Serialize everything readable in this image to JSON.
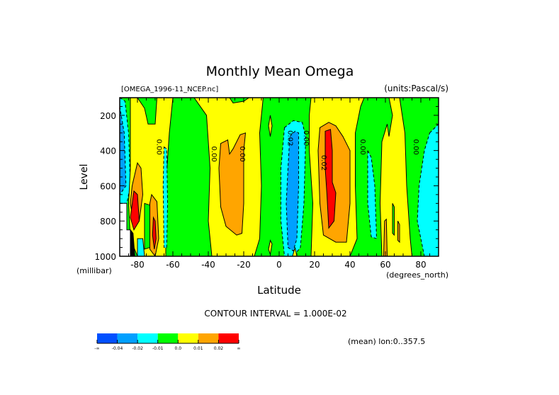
{
  "chart_data": {
    "type": "heatmap",
    "subtype": "filled-contour",
    "title": "Monthly Mean Omega",
    "file_label": "[OMEGA_1996-11_NCEP.nc]",
    "units_label": "(units:Pascal/s)",
    "xlabel": "Latitude",
    "xunits": "(degrees_north)",
    "ylabel": "Level",
    "yunits": "(millibar)",
    "xlim": [
      -90,
      90
    ],
    "ylim": [
      1000,
      100
    ],
    "y_inverted": true,
    "xticks": [
      -80,
      -60,
      -40,
      -20,
      0,
      20,
      40,
      60,
      80
    ],
    "xtick_labels": [
      "-80",
      "-60",
      "-40",
      "-20",
      "0",
      "20",
      "40",
      "60",
      "80"
    ],
    "yticks": [
      200,
      400,
      600,
      800,
      1000
    ],
    "ytick_labels": [
      "200",
      "400",
      "600",
      "800",
      "1000"
    ],
    "contour_interval_text": "CONTOUR INTERVAL = 1.000E-02",
    "footer_note": "(mean) lon:0..357.5",
    "contour_labels": [
      {
        "text": "0.00",
        "lat": -69,
        "level": 380
      },
      {
        "text": "0.00",
        "lat": -38,
        "level": 420
      },
      {
        "text": "0.00",
        "lat": -22,
        "level": 420
      },
      {
        "text": "0.02",
        "lat": 5,
        "level": 330
      },
      {
        "text": "0.00",
        "lat": 14,
        "level": 330
      },
      {
        "text": "0.02",
        "lat": 24,
        "level": 470
      },
      {
        "text": "0.00",
        "lat": 46,
        "level": 380
      },
      {
        "text": "0.00",
        "lat": 76,
        "level": 380
      }
    ],
    "colorbar": {
      "levels": [
        "-∞",
        "-0.04",
        "-0.02",
        "-0.01",
        "0.0",
        "0.01",
        "0.02",
        "∞"
      ],
      "colors": [
        "#0050ff",
        "#00a0ff",
        "#00ffff",
        "#00ff00",
        "#ffff00",
        "#ffa500",
        "#ff0000"
      ]
    },
    "features": [
      {
        "type": "background",
        "value_class": 3,
        "note": "near zero (green)"
      },
      {
        "region": "lat -90..-84, 100-650 mb",
        "value_class": 1,
        "value": "-0.04..-0.02"
      },
      {
        "region": "lat -86..-60 positive band",
        "value_class": 4,
        "value": "0..0.01"
      },
      {
        "region": "lat -82..-76, 650-850 mb",
        "value_class": 6,
        "value": ">0.02"
      },
      {
        "region": "lat -72..-68, 700-950 mb",
        "value_class": 6,
        "value": ">0.02"
      },
      {
        "region": "lat -66..-63, 400-950 mb",
        "value_class": 2,
        "value": "-0.02..-0.01"
      },
      {
        "region": "lat -40..-15, 100-1000 mb",
        "value_class": 4,
        "value": "0..0.01"
      },
      {
        "region": "lat -35..-20, 300-850 mb",
        "value_class": 5,
        "value": "0.01..0.02"
      },
      {
        "region": "lat 0..18, 250-1000 mb",
        "value_class": 2,
        "value": "-0.02..-0.01"
      },
      {
        "region": "lat 3..14, 300-950 mb",
        "value_class": 1,
        "value": "-0.04..-0.02"
      },
      {
        "region": "lat 20..45, 100-1000 mb",
        "value_class": 4,
        "value": "0..0.01"
      },
      {
        "region": "lat 23..40, 250-920 mb",
        "value_class": 5,
        "value": "0.01..0.02"
      },
      {
        "region": "lat 26..32, 280-830 mb",
        "value_class": 6,
        "value": ">0.02"
      },
      {
        "region": "lat 50..56, 450-900 mb",
        "value_class": 2,
        "value": "-0.02..-0.01"
      },
      {
        "region": "lat 58..76, 200-1000 mb",
        "value_class": 4,
        "value": "0..0.01"
      },
      {
        "region": "lat 80..90, 200-1000 mb",
        "value_class": 2,
        "value": "-0.02..-0.01"
      }
    ]
  }
}
